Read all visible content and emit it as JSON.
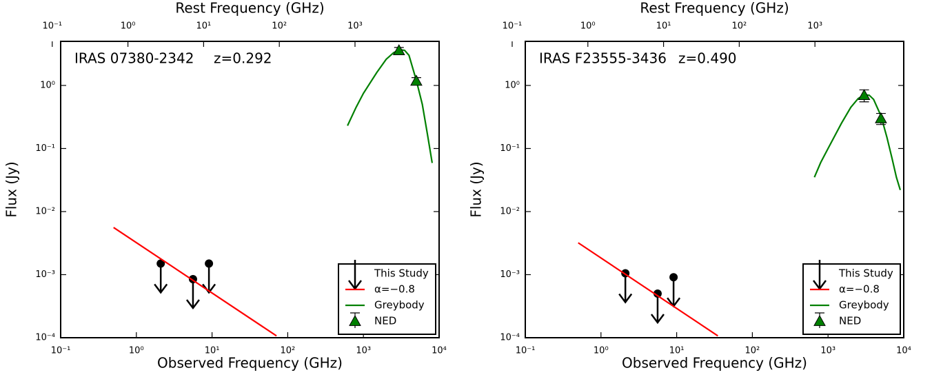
{
  "chart_data": [
    {
      "type": "scatter",
      "annotation": "IRAS 07380-2342",
      "redshift_label": "z=0.292",
      "xlabel": "Observed Frequency (GHz)",
      "ylabel": "Flux (Jy)",
      "x2label": "Rest Frequency (GHz)",
      "xscale": "log",
      "yscale": "log",
      "xlim": [
        0.1,
        10000
      ],
      "ylim": [
        0.0001,
        5
      ],
      "xticks": [
        {
          "value": 0.1,
          "label": "10⁻¹"
        },
        {
          "value": 1,
          "label": "10⁰"
        },
        {
          "value": 10,
          "label": "10¹"
        },
        {
          "value": 100,
          "label": "10²"
        },
        {
          "value": 1000,
          "label": "10³"
        },
        {
          "value": 10000,
          "label": "10⁴"
        }
      ],
      "yticks": [
        {
          "value": 0.0001,
          "label": "10⁻⁴"
        },
        {
          "value": 0.001,
          "label": "10⁻³"
        },
        {
          "value": 0.01,
          "label": "10⁻²"
        },
        {
          "value": 0.1,
          "label": "10⁻¹"
        },
        {
          "value": 1,
          "label": "10⁰"
        }
      ],
      "x2lim": [
        0.1292,
        12920
      ],
      "x2ticks": [
        {
          "value": 0.1,
          "label": "10⁻¹"
        },
        {
          "value": 1,
          "label": "10⁰"
        },
        {
          "value": 10,
          "label": "10¹"
        },
        {
          "value": 100,
          "label": "10²"
        },
        {
          "value": 1000,
          "label": "10³"
        }
      ],
      "legend": "lower right",
      "series": [
        {
          "name": "This Study",
          "kind": "upper_limit",
          "color": "#000000",
          "x": [
            2.1,
            5.6,
            9.1
          ],
          "values": [
            0.0015,
            0.00085,
            0.0015
          ]
        },
        {
          "name": "α=−0.8",
          "kind": "line",
          "color": "#ff0000",
          "x": [
            0.5,
            71
          ],
          "values": [
            0.0056,
            0.000107
          ]
        },
        {
          "name": "Greybody",
          "kind": "line",
          "color": "#008000",
          "x": [
            616,
            800,
            1000,
            1500,
            2000,
            2500,
            3000,
            3500,
            4000,
            5000,
            6000,
            7000,
            8100
          ],
          "values": [
            0.23,
            0.45,
            0.75,
            1.6,
            2.6,
            3.3,
            3.7,
            3.6,
            3.0,
            1.2,
            0.5,
            0.17,
            0.059
          ]
        },
        {
          "name": "NED",
          "kind": "errorbar",
          "color": "#008000",
          "x": [
            2950,
            5000
          ],
          "values": [
            3.6,
            1.18
          ],
          "errors": [
            0.4,
            0.15
          ]
        }
      ]
    },
    {
      "type": "scatter",
      "annotation": "IRAS F23555-3436",
      "redshift_label": "z=0.490",
      "xlabel": "Observed Frequency (GHz)",
      "ylabel": "Flux (Jy)",
      "x2label": "Rest Frequency (GHz)",
      "xscale": "log",
      "yscale": "log",
      "xlim": [
        0.1,
        10000
      ],
      "ylim": [
        0.0001,
        5
      ],
      "xticks": [
        {
          "value": 0.1,
          "label": "10⁻¹"
        },
        {
          "value": 1,
          "label": "10⁰"
        },
        {
          "value": 10,
          "label": "10¹"
        },
        {
          "value": 100,
          "label": "10²"
        },
        {
          "value": 1000,
          "label": "10³"
        },
        {
          "value": 10000,
          "label": "10⁴"
        }
      ],
      "yticks": [
        {
          "value": 0.0001,
          "label": "10⁻⁴"
        },
        {
          "value": 0.001,
          "label": "10⁻³"
        },
        {
          "value": 0.01,
          "label": "10⁻²"
        },
        {
          "value": 0.1,
          "label": "10⁻¹"
        },
        {
          "value": 1,
          "label": "10⁰"
        }
      ],
      "x2lim": [
        0.149,
        14900
      ],
      "x2ticks": [
        {
          "value": 0.1,
          "label": "10⁻¹"
        },
        {
          "value": 1,
          "label": "10⁰"
        },
        {
          "value": 10,
          "label": "10¹"
        },
        {
          "value": 100,
          "label": "10²"
        },
        {
          "value": 1000,
          "label": "10³"
        }
      ],
      "legend": "lower right",
      "series": [
        {
          "name": "This Study",
          "kind": "upper_limit",
          "color": "#000000",
          "x": [
            2.1,
            5.6,
            9.1
          ],
          "values": [
            0.00105,
            0.0005,
            0.00091
          ]
        },
        {
          "name": "α=−0.8",
          "kind": "line",
          "color": "#ff0000",
          "x": [
            0.5,
            35
          ],
          "values": [
            0.0032,
            0.000107
          ]
        },
        {
          "name": "Greybody",
          "kind": "line",
          "color": "#008000",
          "x": [
            660,
            800,
            1000,
            1500,
            2000,
            2500,
            3000,
            3500,
            4000,
            5000,
            6000,
            7000,
            8000,
            9000
          ],
          "values": [
            0.035,
            0.06,
            0.1,
            0.25,
            0.45,
            0.62,
            0.71,
            0.7,
            0.6,
            0.33,
            0.15,
            0.07,
            0.035,
            0.022
          ]
        },
        {
          "name": "NED",
          "kind": "errorbar",
          "color": "#008000",
          "x": [
            3000,
            5000
          ],
          "values": [
            0.7,
            0.3
          ],
          "errors": [
            0.15,
            0.06
          ]
        }
      ]
    }
  ]
}
